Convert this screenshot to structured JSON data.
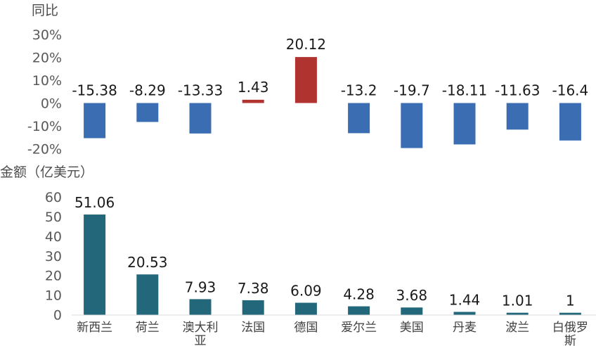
{
  "chart_data": [
    {
      "type": "bar",
      "ylabel": "同比",
      "yticks": [
        "30%",
        "20%",
        "10%",
        "0%",
        "-10%",
        "-20%"
      ],
      "ylim": [
        -20,
        30
      ],
      "categories": [
        "新西兰",
        "荷兰",
        "澳大利亚",
        "法国",
        "德国",
        "爱尔兰",
        "美国",
        "丹麦",
        "波兰",
        "白俄罗斯"
      ],
      "values": [
        -15.38,
        -8.29,
        -13.33,
        1.43,
        20.12,
        -13.2,
        -19.7,
        -18.11,
        -11.63,
        -16.4
      ],
      "value_labels": [
        "-15.38",
        "-8.29",
        "-13.33",
        "1.43",
        "20.12",
        "-13.2",
        "-19.7",
        "-18.11",
        "-11.63",
        "-16.4"
      ],
      "colors": {
        "negative": "#3b6db3",
        "positive": "#b13330"
      },
      "grid": false
    },
    {
      "type": "bar",
      "ylabel": "金额（亿美元）",
      "yticks": [
        "60",
        "50",
        "40",
        "30",
        "20",
        "10",
        "0"
      ],
      "ylim": [
        0,
        60
      ],
      "categories": [
        "新西兰",
        "荷兰",
        "澳大利亚",
        "法国",
        "德国",
        "爱尔兰",
        "美国",
        "丹麦",
        "波兰",
        "白俄罗斯"
      ],
      "values": [
        51.06,
        20.53,
        7.93,
        7.38,
        6.09,
        4.28,
        3.68,
        1.44,
        1.01,
        1
      ],
      "value_labels": [
        "51.06",
        "20.53",
        "7.93",
        "7.38",
        "6.09",
        "4.28",
        "3.68",
        "1.44",
        "1.01",
        "1"
      ],
      "color": "#23687a",
      "grid": false
    }
  ]
}
